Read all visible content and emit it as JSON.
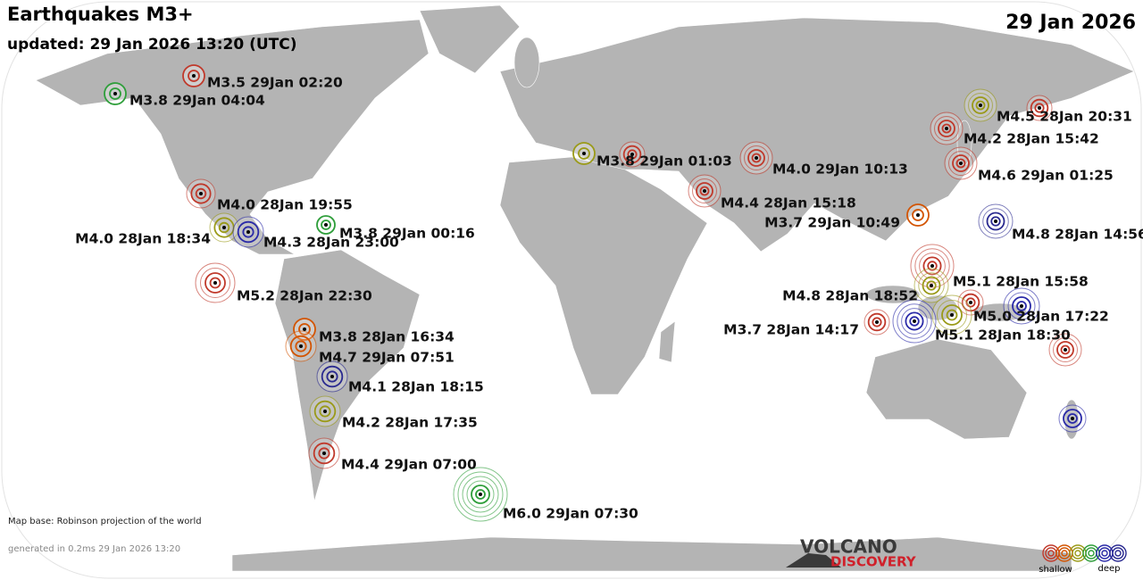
{
  "header": {
    "title": "Earthquakes M3+",
    "updated": "updated: 29 Jan 2026 13:20 (UTC)",
    "date": "29 Jan 2026"
  },
  "quakes": [
    {
      "label": "M3.5 29Jan 02:20",
      "color": "#c0392b"
    },
    {
      "label": "M3.8 29Jan 04:04",
      "color": "#2e9e3a"
    },
    {
      "label": "M4.0 28Jan 19:55",
      "color": "#c0392b"
    },
    {
      "label": "M4.0 28Jan 18:34",
      "color": "#9a9a18"
    },
    {
      "label": "M4.3 28Jan 23:00",
      "color": "#2a2aa8"
    },
    {
      "label": "M3.8 29Jan 00:16",
      "color": "#2e9e3a"
    },
    {
      "label": "M5.2 28Jan 22:30",
      "color": "#c0392b"
    },
    {
      "label": "M3.8 28Jan 16:34",
      "color": "#d35400"
    },
    {
      "label": "M4.7 29Jan 07:51",
      "color": "#d35400"
    },
    {
      "label": "M4.1 28Jan 18:15",
      "color": "#2a2a90"
    },
    {
      "label": "M4.2 28Jan 17:35",
      "color": "#9a9a18"
    },
    {
      "label": "M4.4 29Jan 07:00",
      "color": "#c0392b"
    },
    {
      "label": "M6.0 29Jan 07:30",
      "color": "#2e9e3a"
    },
    {
      "label": "M3.8 29Jan 01:03",
      "color": "#9a9a18"
    },
    {
      "label": "M4.0 29Jan 10:13",
      "color": "#c0392b"
    },
    {
      "label": "M4.4 28Jan 15:18",
      "color": "#c0392b"
    },
    {
      "label": "M3.7 29Jan 10:49",
      "color": "#d35400"
    },
    {
      "label": "M4.5 28Jan 20:31",
      "color": "#9a9a18"
    },
    {
      "label": "M4.2 28Jan 15:42",
      "color": "#c0392b"
    },
    {
      "label": "M4.6 29Jan 01:25",
      "color": "#c0392b"
    },
    {
      "label": "M4.8 28Jan 14:56",
      "color": "#2a2a90"
    },
    {
      "label": "M5.1 28Jan 15:58",
      "color": "#c0392b"
    },
    {
      "label": "M4.8 28Jan 18:52",
      "color": "#9a9a18"
    },
    {
      "label": "M5.0 28Jan 17:22",
      "color": "#9a9a18"
    },
    {
      "label": "M5.1 28Jan 18:30",
      "color": "#2a2aa8"
    },
    {
      "label": "M3.7 28Jan 14:17",
      "color": "#c0392b"
    }
  ],
  "unlabeled_markers": [
    {
      "color": "#c0392b"
    },
    {
      "color": "#c0392b"
    },
    {
      "color": "#c0392b"
    },
    {
      "color": "#2a2aa8"
    },
    {
      "color": "#c0392b"
    },
    {
      "color": "#2a2aa8"
    }
  ],
  "footer": {
    "map_base": "Map base: Robinson projection of the world",
    "generated": "generated in 0.2ms 29 Jan 2026 13:20"
  },
  "logo": {
    "line1": "VOLCANO",
    "line2": "DISCOVERY"
  },
  "legend": {
    "shallow": "shallow",
    "deep": "deep",
    "colors": [
      "#c0392b",
      "#d35400",
      "#9a9a18",
      "#2e9e3a",
      "#2a2aa8",
      "#2a2a90"
    ]
  }
}
